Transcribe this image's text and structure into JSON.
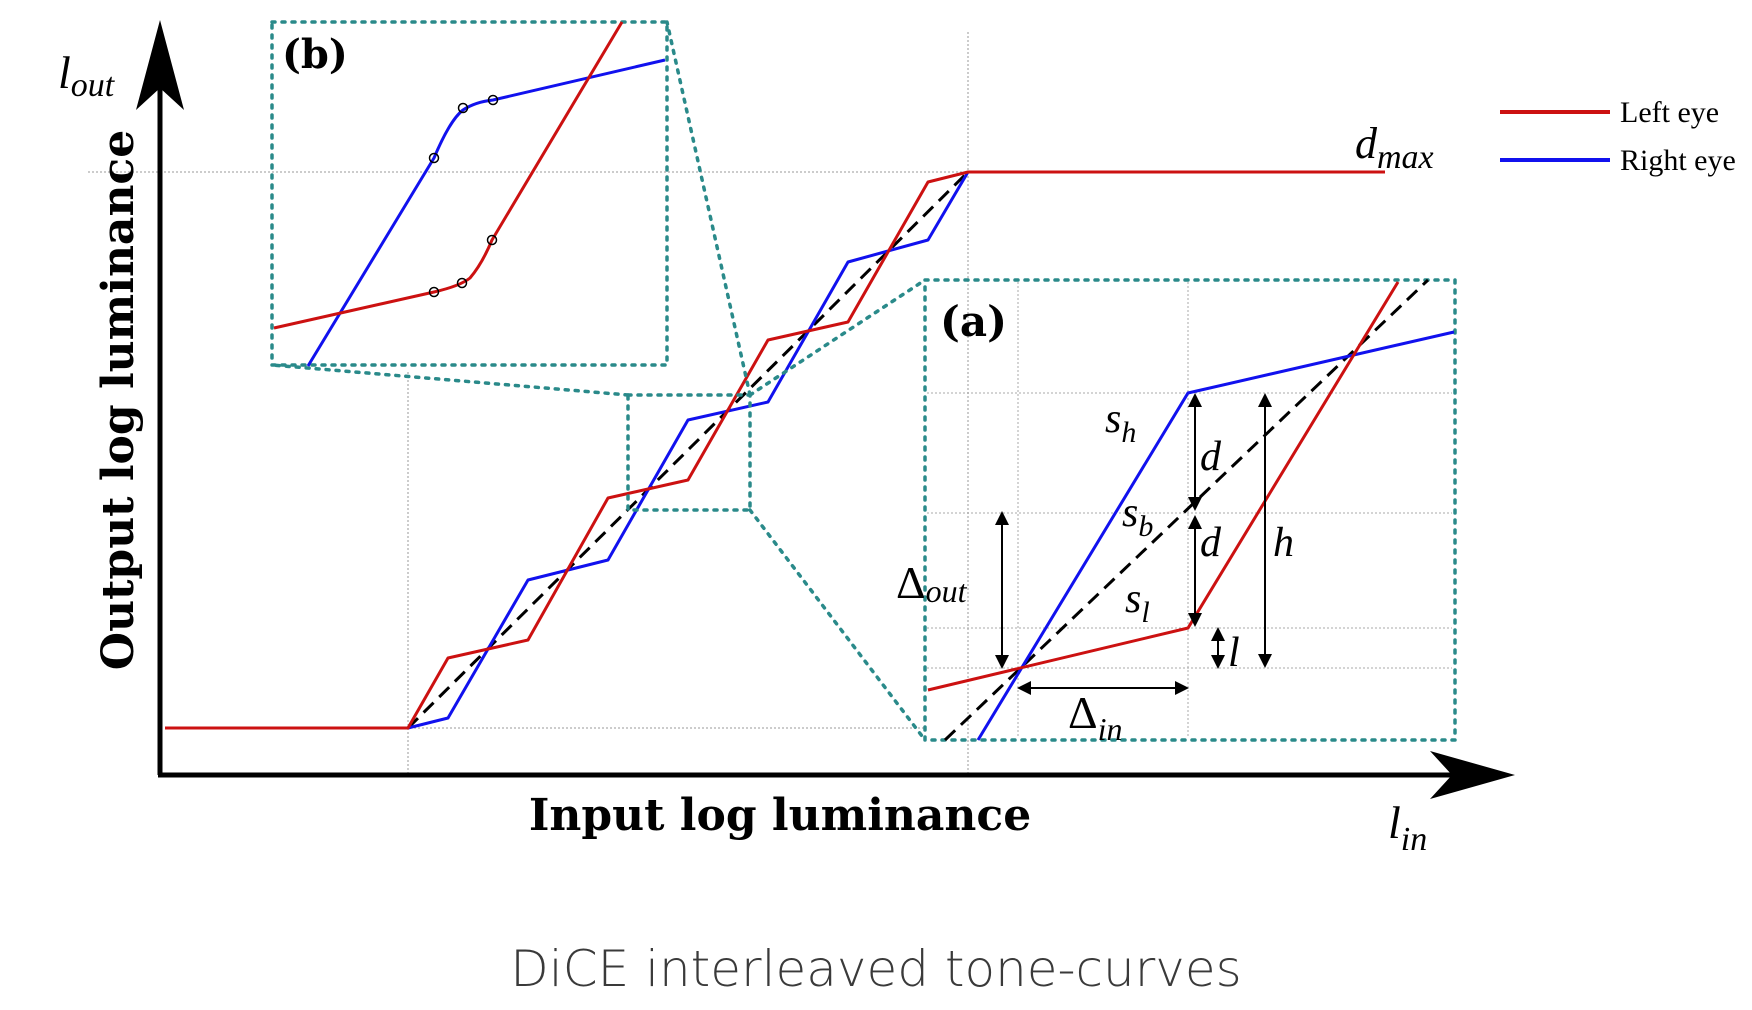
{
  "figure": {
    "caption": "DiCE interleaved tone-curves",
    "axes": {
      "y_label": "Output log luminance",
      "y_symbol": "l",
      "y_symbol_sub": "out",
      "x_label": "Input log luminance",
      "x_symbol": "l",
      "x_symbol_sub": "in",
      "dmax_symbol": "d",
      "dmax_sub": "max"
    },
    "legend": [
      {
        "label": "Left eye",
        "color": "#cc1111"
      },
      {
        "label": "Right eye",
        "color": "#1111ee"
      }
    ],
    "insets": {
      "a": {
        "tag": "(a)",
        "sh": "s",
        "sh_sub": "h",
        "sb": "s",
        "sb_sub": "b",
        "sl": "s",
        "sl_sub": "l",
        "d_top": "d",
        "d_bottom": "d",
        "h": "h",
        "l": "l",
        "delta_out": "Δ",
        "delta_out_sub": "out",
        "delta_in": "Δ",
        "delta_in_sub": "in"
      },
      "b": {
        "tag": "(b)"
      }
    },
    "colors": {
      "left_eye": "#cc1111",
      "right_eye": "#1111ee",
      "inset_border": "#2a8a8a",
      "guide": "#999999"
    }
  }
}
